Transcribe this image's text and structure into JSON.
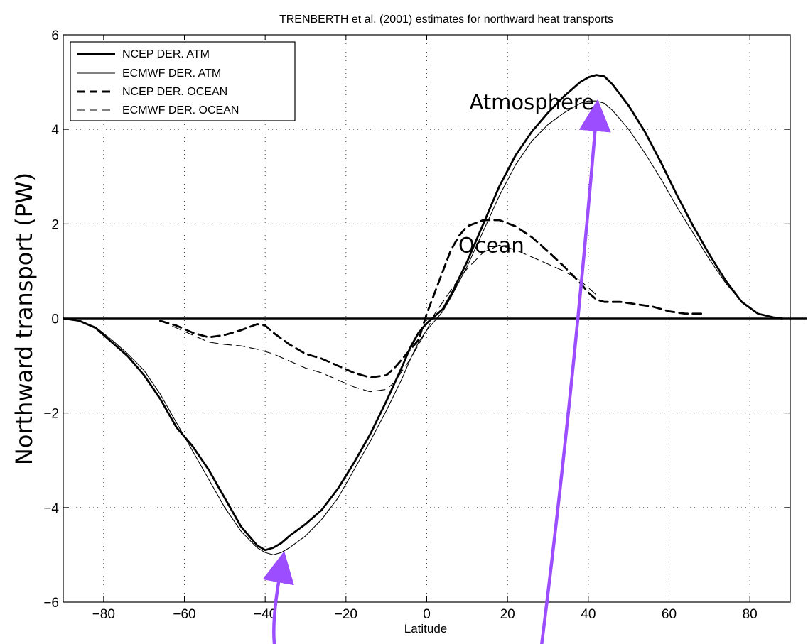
{
  "chart_data": {
    "type": "line",
    "title": "TRENBERTH et al. (2001) estimates for northward heat transports",
    "xlabel": "Latitude",
    "ylabel": "Northward transport (PW)",
    "xlim": [
      -90,
      90
    ],
    "ylim": [
      -6,
      6
    ],
    "xticks": [
      -80,
      -60,
      -40,
      -20,
      0,
      20,
      40,
      60,
      80
    ],
    "yticks": [
      -6,
      -4,
      -2,
      0,
      2,
      4,
      6
    ],
    "xtick_labels": [
      "−80",
      "−60",
      "−40",
      "−20",
      "0",
      "20",
      "40",
      "60",
      "80"
    ],
    "ytick_labels": [
      "−6",
      "−4",
      "−2",
      "0",
      "2",
      "4",
      "6"
    ],
    "grid": true,
    "legend_position": "top-left",
    "series": [
      {
        "name": "NCEP DER. ATM",
        "style": "solid-thick",
        "x": [
          -90,
          -86,
          -82,
          -78,
          -74,
          -70,
          -66,
          -62,
          -58,
          -54,
          -50,
          -46,
          -42,
          -40,
          -38,
          -36,
          -34,
          -30,
          -26,
          -22,
          -18,
          -14,
          -10,
          -6,
          -4,
          -2,
          0,
          2,
          4,
          6,
          10,
          14,
          18,
          22,
          26,
          30,
          34,
          38,
          40,
          42,
          44,
          46,
          50,
          54,
          58,
          62,
          66,
          70,
          74,
          78,
          82,
          86,
          88
        ],
        "y": [
          0,
          -0.05,
          -0.2,
          -0.5,
          -0.8,
          -1.2,
          -1.7,
          -2.3,
          -2.7,
          -3.2,
          -3.8,
          -4.4,
          -4.8,
          -4.9,
          -4.85,
          -4.75,
          -4.6,
          -4.35,
          -4.05,
          -3.6,
          -3.05,
          -2.45,
          -1.75,
          -1.0,
          -0.6,
          -0.3,
          -0.1,
          0.05,
          0.2,
          0.5,
          1.2,
          2.0,
          2.8,
          3.45,
          3.95,
          4.35,
          4.7,
          5.0,
          5.1,
          5.15,
          5.12,
          4.95,
          4.5,
          3.95,
          3.3,
          2.6,
          1.95,
          1.35,
          0.8,
          0.35,
          0.1,
          0.02,
          0
        ]
      },
      {
        "name": "ECMWF DER. ATM",
        "style": "solid-thin",
        "x": [
          -90,
          -86,
          -82,
          -78,
          -74,
          -70,
          -66,
          -62,
          -58,
          -54,
          -50,
          -46,
          -42,
          -40,
          -38,
          -36,
          -34,
          -30,
          -26,
          -22,
          -18,
          -14,
          -10,
          -6,
          -4,
          -2,
          0,
          2,
          4,
          6,
          10,
          14,
          18,
          22,
          26,
          30,
          34,
          38,
          40,
          42,
          44,
          46,
          50,
          54,
          58,
          62,
          66,
          70,
          74,
          78,
          82,
          86,
          88
        ],
        "y": [
          0,
          -0.05,
          -0.18,
          -0.45,
          -0.75,
          -1.1,
          -1.6,
          -2.2,
          -2.8,
          -3.4,
          -4.0,
          -4.5,
          -4.85,
          -4.95,
          -5.0,
          -4.95,
          -4.85,
          -4.6,
          -4.25,
          -3.8,
          -3.2,
          -2.6,
          -1.95,
          -1.25,
          -0.85,
          -0.5,
          -0.25,
          -0.05,
          0.15,
          0.45,
          1.1,
          1.85,
          2.6,
          3.25,
          3.75,
          4.1,
          4.35,
          4.55,
          4.6,
          4.6,
          4.55,
          4.4,
          4.0,
          3.5,
          2.95,
          2.35,
          1.8,
          1.25,
          0.75,
          0.35,
          0.1,
          0.02,
          0
        ]
      },
      {
        "name": "NCEP DER. OCEAN",
        "style": "dashed-thick",
        "x": [
          -66,
          -62,
          -58,
          -54,
          -50,
          -46,
          -42,
          -40,
          -38,
          -34,
          -30,
          -26,
          -22,
          -18,
          -14,
          -10,
          -8,
          -6,
          -4,
          -2,
          0,
          2,
          4,
          6,
          8,
          10,
          14,
          18,
          22,
          26,
          30,
          34,
          38,
          40,
          42,
          44,
          48,
          52,
          56,
          60,
          64,
          68
        ],
        "y": [
          -0.05,
          -0.15,
          -0.3,
          -0.4,
          -0.35,
          -0.25,
          -0.12,
          -0.15,
          -0.3,
          -0.55,
          -0.75,
          -0.85,
          -1.0,
          -1.15,
          -1.25,
          -1.2,
          -1.05,
          -0.85,
          -0.65,
          -0.45,
          0.1,
          0.55,
          1.0,
          1.45,
          1.75,
          1.95,
          2.08,
          2.08,
          1.95,
          1.72,
          1.42,
          1.1,
          0.75,
          0.55,
          0.4,
          0.35,
          0.35,
          0.3,
          0.25,
          0.15,
          0.1,
          0.1
        ]
      },
      {
        "name": "ECMWF DER. OCEAN",
        "style": "dashed-thin",
        "x": [
          -66,
          -62,
          -58,
          -54,
          -50,
          -46,
          -42,
          -38,
          -34,
          -30,
          -26,
          -22,
          -18,
          -14,
          -10,
          -8,
          -6,
          -4,
          -2,
          0,
          2,
          4,
          6,
          8,
          10,
          14,
          18,
          22,
          26,
          30,
          34,
          38,
          40,
          42
        ],
        "y": [
          -0.05,
          -0.2,
          -0.35,
          -0.5,
          -0.55,
          -0.58,
          -0.65,
          -0.75,
          -0.9,
          -1.05,
          -1.15,
          -1.3,
          -1.45,
          -1.55,
          -1.5,
          -1.35,
          -1.1,
          -0.85,
          -0.55,
          -0.25,
          0.1,
          0.35,
          0.6,
          0.85,
          1.05,
          1.4,
          1.55,
          1.45,
          1.3,
          1.15,
          1.0,
          0.8,
          0.65,
          0.5
        ]
      }
    ],
    "annotations": [
      {
        "text": "Atmosphere",
        "x": 26,
        "y": 4.42
      },
      {
        "text": "Ocean",
        "x": 16,
        "y": 1.4
      }
    ],
    "arrows": [
      {
        "color": "#9b4dff",
        "from": [
          -37,
          -7.2
        ],
        "to": [
          -36,
          -5.25
        ]
      },
      {
        "color": "#9b4dff",
        "from": [
          28,
          -7.2
        ],
        "to": [
          42,
          4.3
        ]
      }
    ]
  }
}
